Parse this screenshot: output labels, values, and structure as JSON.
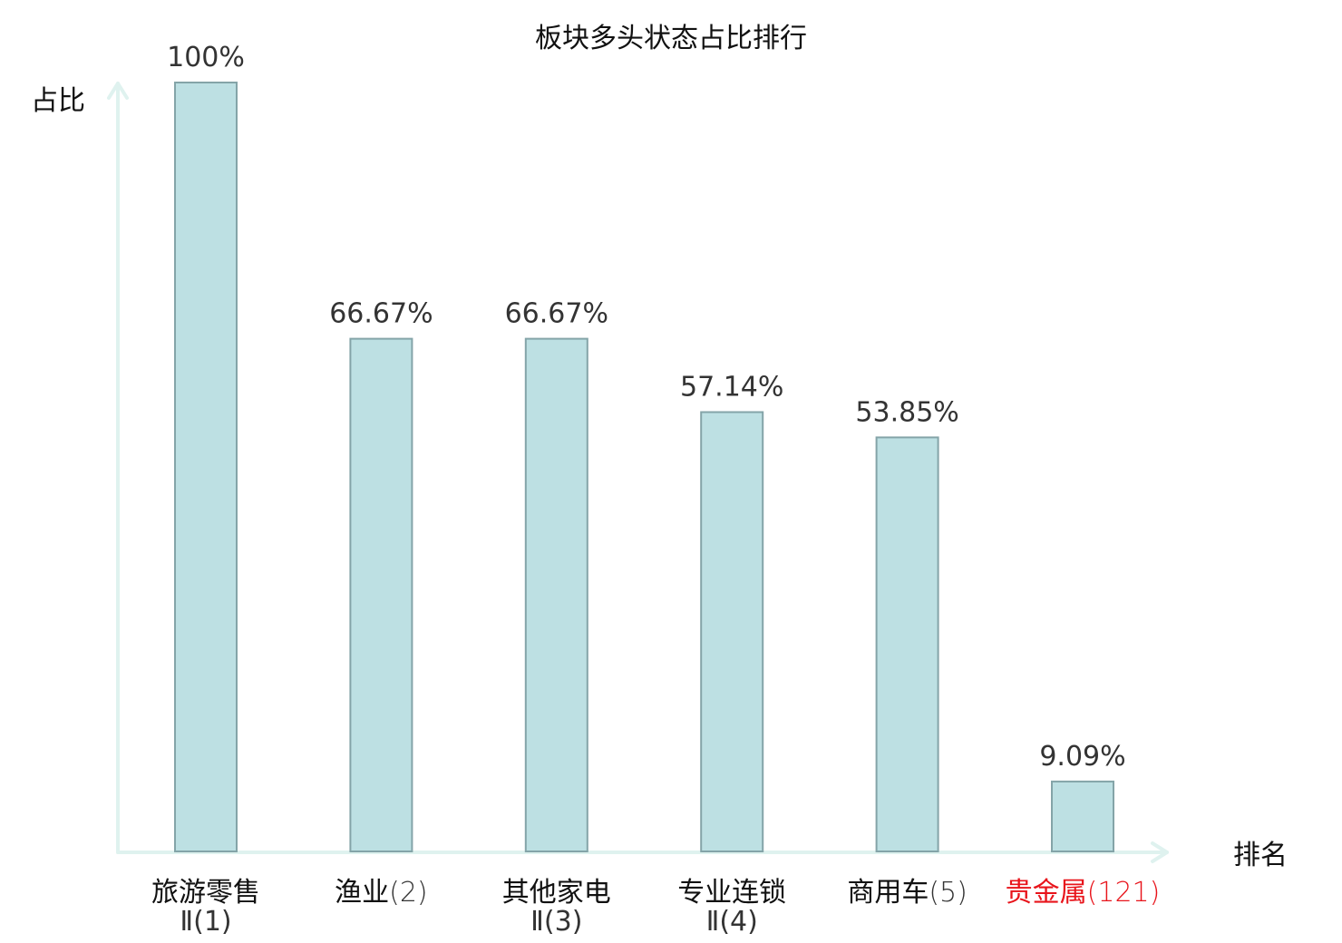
{
  "chart_data": {
    "type": "bar",
    "title": "板块多头状态占比排行",
    "ylabel": "占比",
    "xlabel": "排名",
    "ylim": [
      0,
      100
    ],
    "grid": false,
    "legend": "none",
    "categories": [
      {
        "name": "旅游零售",
        "rank_label": "Ⅱ(1)",
        "highlight": false
      },
      {
        "name": "渔业",
        "rank_label": "(2)",
        "highlight": false
      },
      {
        "name": "其他家电",
        "rank_label": "Ⅱ(3)",
        "highlight": false
      },
      {
        "name": "专业连锁",
        "rank_label": "Ⅱ(4)",
        "highlight": false
      },
      {
        "name": "商用车",
        "rank_label": "(5)",
        "highlight": false
      },
      {
        "name": "贵金属",
        "rank_label": "(121)",
        "highlight": true
      }
    ],
    "values": [
      100,
      66.67,
      66.67,
      57.14,
      53.85,
      9.09
    ],
    "value_labels": [
      "100%",
      "66.67%",
      "66.67%",
      "57.14%",
      "53.85%",
      "9.09%"
    ],
    "colors": {
      "bar_fill": "#bde0e3",
      "bar_stroke": "#84a4a8",
      "axis": "#dff2ef",
      "highlight_text": "#e8141b"
    }
  }
}
